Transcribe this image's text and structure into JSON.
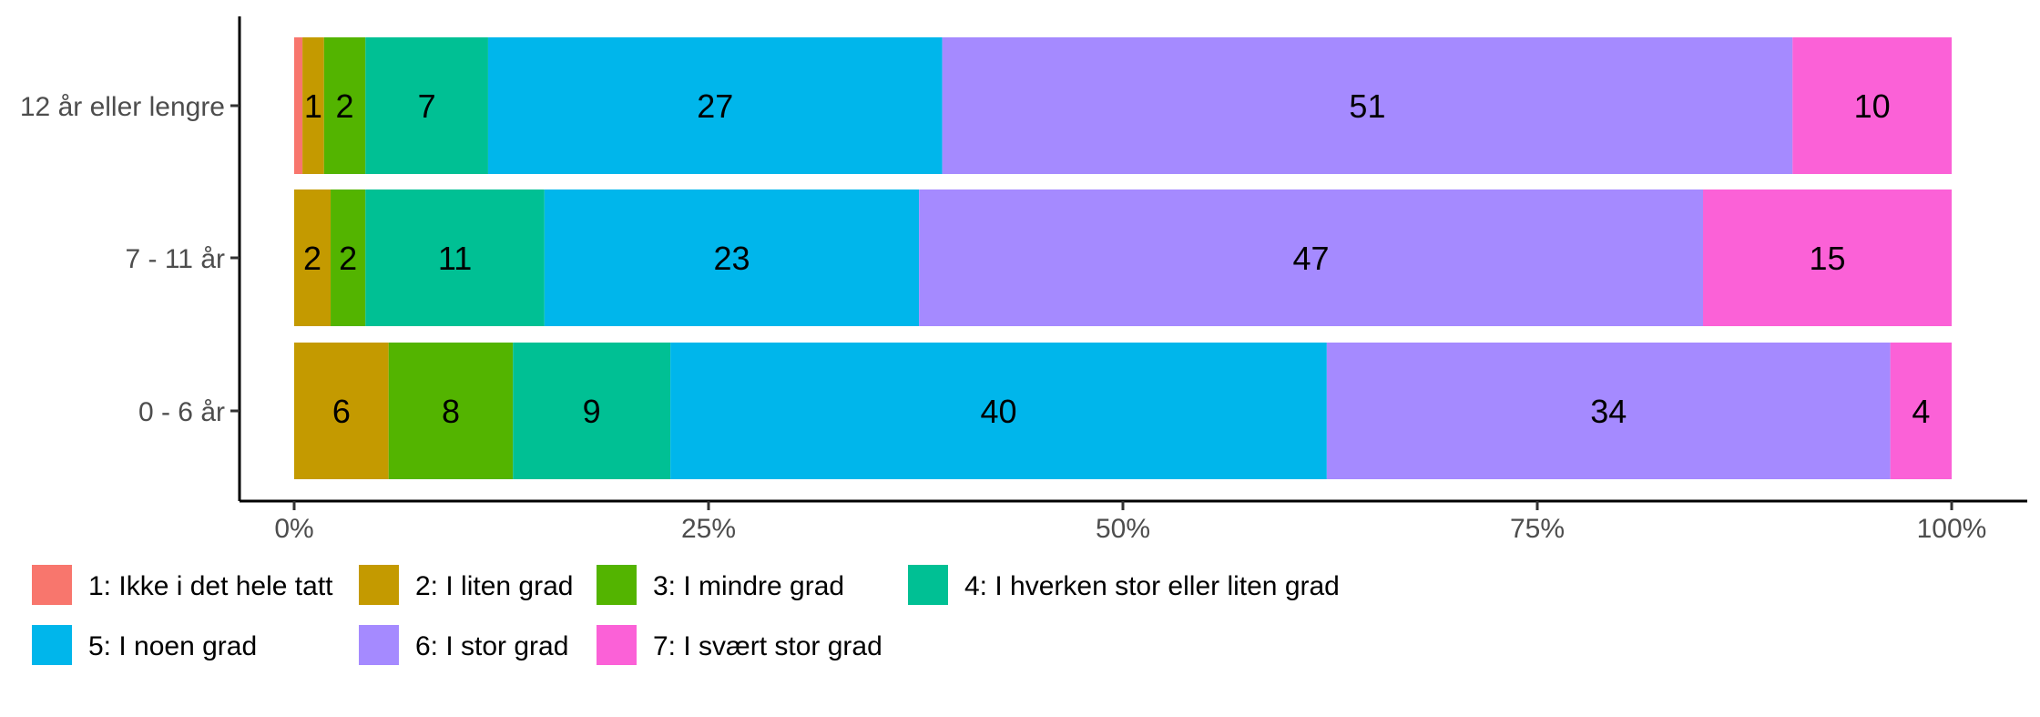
{
  "chart_data": {
    "type": "bar",
    "orientation": "horizontal",
    "stacked": true,
    "normalized": true,
    "title": "",
    "xlabel": "",
    "ylabel": "",
    "xlim": [
      0,
      1
    ],
    "x_ticks": [
      {
        "value": 0,
        "label": "0%"
      },
      {
        "value": 0.25,
        "label": "25%"
      },
      {
        "value": 0.5,
        "label": "50%"
      },
      {
        "value": 0.75,
        "label": "75%"
      },
      {
        "value": 1,
        "label": "100%"
      }
    ],
    "categories": [
      "12 år eller lengre",
      "7 - 11 år",
      "0 - 6 år"
    ],
    "series": [
      {
        "name": "1: Ikke i det hele tatt",
        "color": "#F8766D",
        "values": [
          0.5,
          0,
          0
        ],
        "labels": [
          "",
          "",
          ""
        ]
      },
      {
        "name": "2: I liten grad",
        "color": "#C49A00",
        "values": [
          1.3,
          2.2,
          5.7
        ],
        "labels": [
          "1",
          "2",
          "6"
        ]
      },
      {
        "name": "3: I mindre grad",
        "color": "#53B400",
        "values": [
          2.5,
          2.1,
          7.5
        ],
        "labels": [
          "2",
          "2",
          "8"
        ]
      },
      {
        "name": "4: I hverken stor eller liten grad",
        "color": "#00C094",
        "values": [
          7.4,
          10.8,
          9.5
        ],
        "labels": [
          "7",
          "11",
          "9"
        ]
      },
      {
        "name": "5: I noen grad",
        "color": "#00B6EB",
        "values": [
          27.4,
          22.6,
          39.6
        ],
        "labels": [
          "27",
          "23",
          "40"
        ]
      },
      {
        "name": "6: I stor grad",
        "color": "#A58AFF",
        "values": [
          51.3,
          47.3,
          34.0
        ],
        "labels": [
          "51",
          "47",
          "34"
        ]
      },
      {
        "name": "7: I svært stor grad",
        "color": "#FB61D7",
        "values": [
          9.6,
          15.0,
          3.7
        ],
        "labels": [
          "10",
          "15",
          "4"
        ]
      }
    ],
    "grid": false,
    "legend_position": "bottom",
    "legend_rows": [
      [
        0,
        1,
        2,
        3
      ],
      [
        4,
        5,
        6
      ]
    ]
  }
}
